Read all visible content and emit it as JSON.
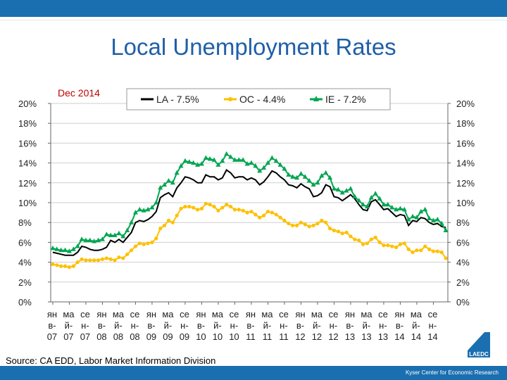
{
  "header": {
    "title": "Local Unemployment Rates"
  },
  "footer": {
    "source": "Source: CA EDD, Labor Market Information Division",
    "credit": "Kyser Center for Economic Research",
    "logo_text": "LAEDC",
    "logo_icon": "laedc-logo-icon"
  },
  "chart_data": {
    "type": "line",
    "annotation": "Dec 2014",
    "ylim": [
      0,
      20
    ],
    "y_ticks": [
      "0%",
      "2%",
      "4%",
      "6%",
      "8%",
      "10%",
      "12%",
      "14%",
      "16%",
      "18%",
      "20%"
    ],
    "x_tick_labels": [
      [
        "ян",
        "в-",
        "07"
      ],
      [
        "ма",
        "й-",
        "07"
      ],
      [
        "се",
        "н-",
        "07"
      ],
      [
        "ян",
        "в-",
        "08"
      ],
      [
        "ма",
        "й-",
        "08"
      ],
      [
        "се",
        "н-",
        "08"
      ],
      [
        "ян",
        "в-",
        "09"
      ],
      [
        "ма",
        "й-",
        "09"
      ],
      [
        "се",
        "н-",
        "09"
      ],
      [
        "ян",
        "в-",
        "10"
      ],
      [
        "ма",
        "й-",
        "10"
      ],
      [
        "се",
        "н-",
        "10"
      ],
      [
        "ян",
        "в-",
        "11"
      ],
      [
        "ма",
        "й-",
        "11"
      ],
      [
        "се",
        "н-",
        "11"
      ],
      [
        "ян",
        "в-",
        "12"
      ],
      [
        "ма",
        "й-",
        "12"
      ],
      [
        "се",
        "н-",
        "12"
      ],
      [
        "ян",
        "в-",
        "13"
      ],
      [
        "ма",
        "й-",
        "13"
      ],
      [
        "се",
        "н-",
        "13"
      ],
      [
        "ян",
        "в-",
        "14"
      ],
      [
        "ма",
        "й-",
        "14"
      ],
      [
        "се",
        "н-",
        "14"
      ]
    ],
    "legend_position": "top",
    "series": [
      {
        "name": "LA - 7.5%",
        "color": "#000000",
        "marker": "none",
        "values": [
          5.0,
          4.9,
          4.8,
          4.7,
          4.7,
          4.7,
          5.0,
          5.6,
          5.5,
          5.3,
          5.2,
          5.2,
          5.3,
          5.5,
          6.2,
          6.0,
          6.3,
          6.0,
          6.5,
          7.0,
          8.0,
          8.2,
          8.1,
          8.3,
          8.6,
          9.1,
          10.5,
          10.8,
          11.0,
          10.6,
          11.5,
          12.0,
          12.6,
          12.5,
          12.3,
          12.0,
          12.0,
          12.8,
          12.6,
          12.6,
          12.3,
          12.5,
          13.3,
          13.0,
          12.5,
          12.6,
          12.6,
          12.3,
          12.5,
          12.3,
          11.8,
          12.1,
          12.6,
          13.2,
          13.0,
          12.6,
          12.3,
          11.8,
          11.7,
          11.5,
          11.9,
          11.6,
          11.4,
          10.6,
          10.7,
          11.0,
          11.8,
          11.6,
          10.6,
          10.5,
          10.2,
          10.5,
          10.8,
          10.4,
          9.8,
          9.3,
          9.2,
          10.1,
          10.3,
          9.8,
          9.3,
          9.4,
          9.0,
          8.6,
          8.8,
          8.7,
          7.7,
          8.2,
          8.1,
          8.5,
          8.4,
          8.0,
          7.8,
          7.9,
          7.6,
          7.5
        ]
      },
      {
        "name": "OC - 4.4%",
        "color": "#ffc000",
        "marker": "circle",
        "values": [
          3.8,
          3.7,
          3.6,
          3.6,
          3.5,
          3.6,
          4.0,
          4.3,
          4.2,
          4.2,
          4.2,
          4.2,
          4.3,
          4.4,
          4.3,
          4.2,
          4.5,
          4.4,
          4.8,
          5.2,
          5.6,
          5.9,
          5.8,
          5.9,
          6.0,
          6.4,
          7.4,
          7.7,
          8.2,
          8.0,
          8.7,
          9.4,
          9.6,
          9.6,
          9.5,
          9.3,
          9.4,
          9.9,
          9.8,
          9.6,
          9.2,
          9.5,
          9.8,
          9.6,
          9.3,
          9.3,
          9.2,
          9.0,
          9.1,
          8.8,
          8.5,
          8.7,
          9.1,
          9.0,
          8.8,
          8.5,
          8.2,
          7.9,
          7.7,
          7.7,
          8.0,
          7.8,
          7.6,
          7.7,
          7.9,
          8.2,
          8.0,
          7.4,
          7.2,
          7.1,
          6.9,
          7.0,
          6.6,
          6.3,
          6.2,
          5.8,
          5.9,
          6.3,
          6.5,
          6.0,
          5.7,
          5.7,
          5.6,
          5.5,
          5.8,
          5.9,
          5.3,
          5.0,
          5.2,
          5.2,
          5.6,
          5.3,
          5.1,
          5.1,
          5.0,
          4.4
        ]
      },
      {
        "name": "IE - 7.2%",
        "color": "#00a651",
        "marker": "triangle",
        "values": [
          5.4,
          5.3,
          5.2,
          5.2,
          5.1,
          5.3,
          5.6,
          6.3,
          6.2,
          6.2,
          6.1,
          6.2,
          6.3,
          6.8,
          6.7,
          6.7,
          6.9,
          6.6,
          7.2,
          8.0,
          9.0,
          9.3,
          9.2,
          9.3,
          9.5,
          10.0,
          11.5,
          11.8,
          12.2,
          12.0,
          13.0,
          13.7,
          14.2,
          14.1,
          14.0,
          13.8,
          13.9,
          14.5,
          14.4,
          14.3,
          13.8,
          14.2,
          14.9,
          14.6,
          14.3,
          14.3,
          14.3,
          13.9,
          14.0,
          13.7,
          13.2,
          13.5,
          14.0,
          14.5,
          14.2,
          13.8,
          13.4,
          12.8,
          12.6,
          12.5,
          12.9,
          12.6,
          12.2,
          11.8,
          12.0,
          12.7,
          13.0,
          12.5,
          11.4,
          11.3,
          11.0,
          11.2,
          11.4,
          10.6,
          10.2,
          9.8,
          9.6,
          10.5,
          10.9,
          10.4,
          9.8,
          9.8,
          9.5,
          9.3,
          9.4,
          9.3,
          8.3,
          8.6,
          8.5,
          9.1,
          9.3,
          8.4,
          8.2,
          8.3,
          7.9,
          7.2
        ]
      }
    ]
  }
}
